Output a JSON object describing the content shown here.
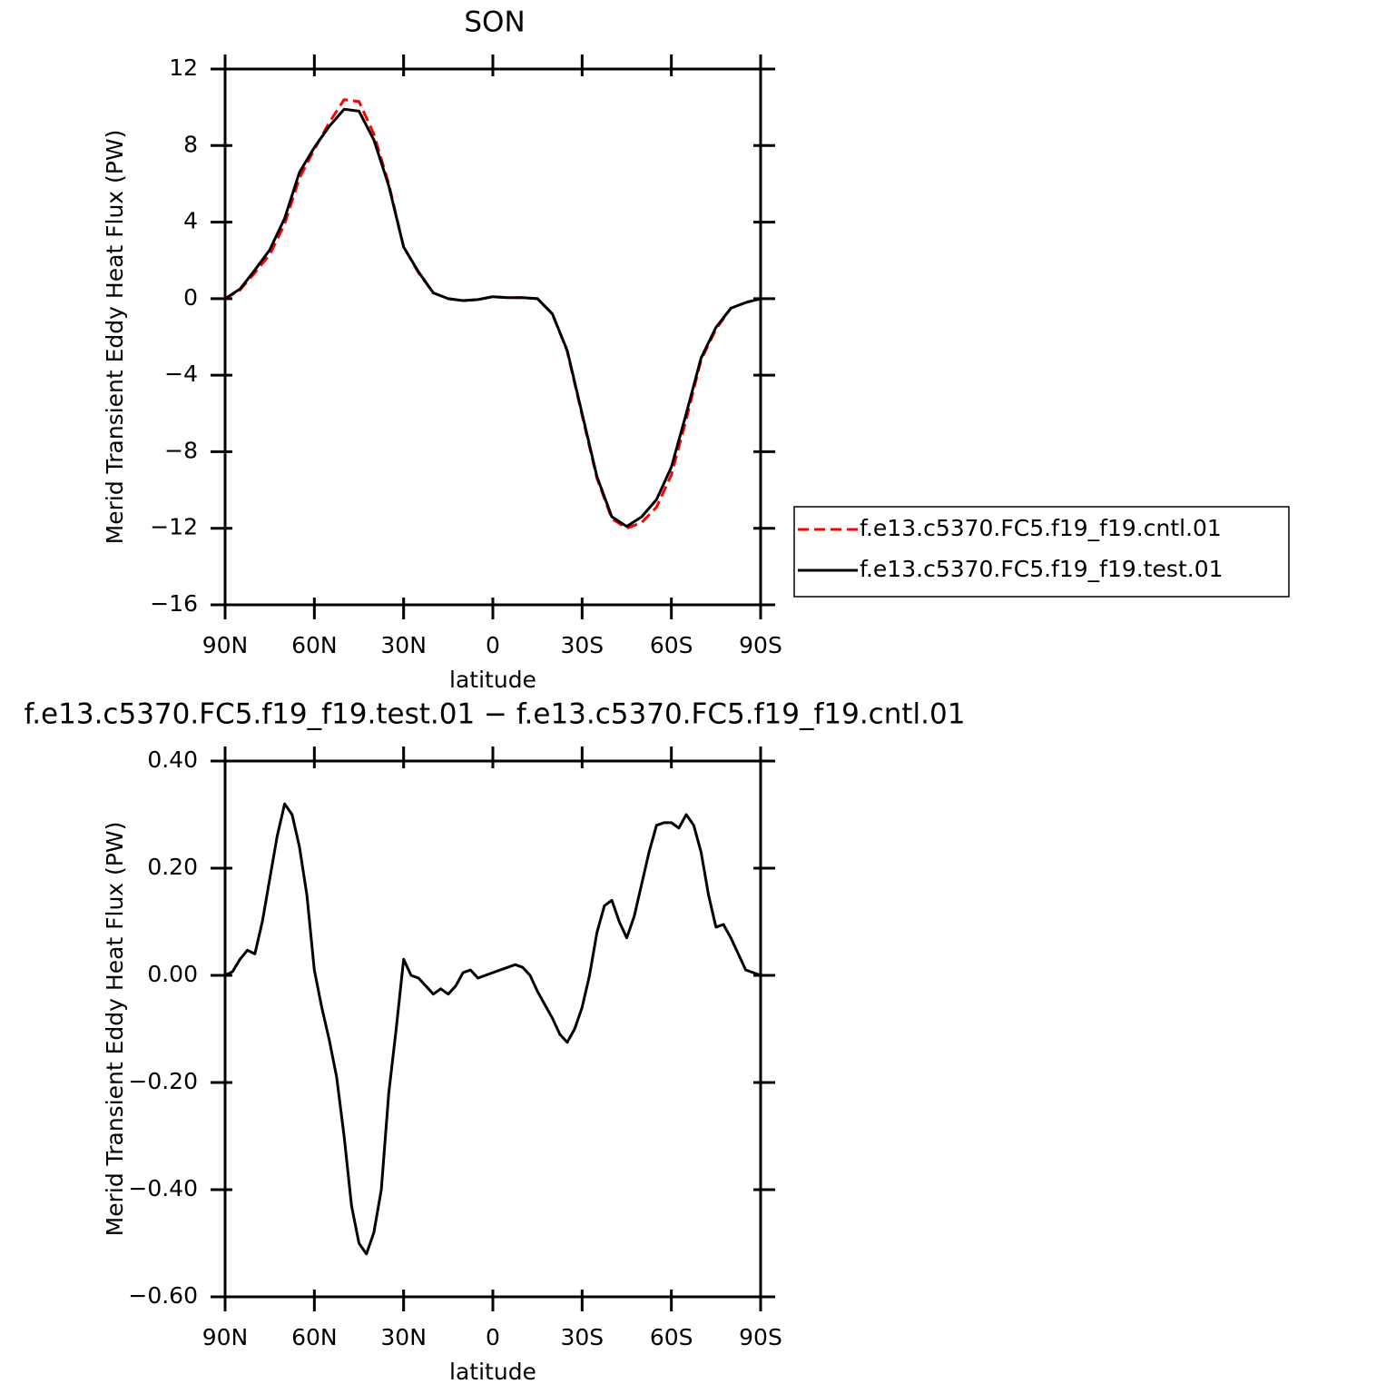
{
  "chart_data": [
    {
      "type": "line",
      "title": "SON",
      "xlabel": "latitude",
      "ylabel": "Merid Transient Eddy Heat Flux (PW)",
      "x": [
        90,
        85,
        80,
        75,
        70,
        65,
        60,
        55,
        50,
        45,
        40,
        35,
        30,
        25,
        20,
        15,
        10,
        5,
        0,
        -5,
        -10,
        -15,
        -20,
        -25,
        -30,
        -35,
        -40,
        -45,
        -50,
        -55,
        -60,
        -65,
        -70,
        -75,
        -80,
        -85,
        -90
      ],
      "series": [
        {
          "name": "f.e13.c5370.FC5.f19_f19.cntl.01",
          "color": "#ff0000",
          "linestyle": "dashed",
          "values": [
            0,
            0.45,
            1.35,
            2.3,
            3.9,
            6.3,
            7.8,
            9.2,
            10.4,
            10.3,
            8.6,
            6.0,
            2.7,
            1.35,
            0.3,
            0.0,
            -0.1,
            -0.05,
            0.1,
            0.05,
            0.05,
            0.0,
            -0.8,
            -2.75,
            -6.1,
            -9.4,
            -11.5,
            -12.0,
            -11.7,
            -10.9,
            -9.2,
            -6.3,
            -3.2,
            -1.6,
            -0.5,
            -0.2,
            0
          ]
        },
        {
          "name": "f.e13.c5370.FC5.f19_f19.test.01",
          "color": "#000000",
          "linestyle": "solid",
          "values": [
            0,
            0.5,
            1.5,
            2.55,
            4.2,
            6.6,
            7.9,
            9.0,
            9.9,
            9.8,
            8.3,
            5.9,
            2.7,
            1.4,
            0.3,
            0.0,
            -0.1,
            -0.05,
            0.1,
            0.05,
            0.05,
            0.0,
            -0.8,
            -2.7,
            -6.0,
            -9.3,
            -11.4,
            -11.9,
            -11.4,
            -10.5,
            -8.8,
            -6.0,
            -3.1,
            -1.5,
            -0.5,
            -0.2,
            0
          ]
        }
      ],
      "xlim": [
        90,
        -90
      ],
      "xticks": [
        {
          "value": 90,
          "label": "90N"
        },
        {
          "value": 60,
          "label": "60N"
        },
        {
          "value": 30,
          "label": "30N"
        },
        0,
        {
          "value": -30,
          "label": "30S"
        },
        {
          "value": -60,
          "label": "60S"
        },
        {
          "value": -90,
          "label": "90S"
        }
      ],
      "ylim": [
        -16,
        12
      ],
      "yticks": [
        {
          "value": -16,
          "label": "−16"
        },
        {
          "value": -12,
          "label": "−12"
        },
        {
          "value": -8,
          "label": "−8"
        },
        {
          "value": -4,
          "label": "−4"
        },
        0,
        4,
        8,
        12
      ],
      "legend": "right"
    },
    {
      "type": "line",
      "title": "f.e13.c5370.FC5.f19_f19.test.01 − f.e13.c5370.FC5.f19_f19.cntl.01",
      "xlabel": "latitude",
      "ylabel": "Merid Transient Eddy Heat Flux (PW)",
      "x": [
        90,
        87.5,
        85,
        82.5,
        80,
        77.5,
        75,
        72.5,
        70,
        67.5,
        65,
        62.5,
        60,
        57.5,
        55,
        52.5,
        50,
        47.5,
        45,
        42.5,
        40,
        37.5,
        35,
        32.5,
        30,
        27.5,
        25,
        22.5,
        20,
        17.5,
        15,
        12.5,
        10,
        7.5,
        5,
        2.5,
        0,
        -2.5,
        -5,
        -7.5,
        -10,
        -12.5,
        -15,
        -17.5,
        -20,
        -22.5,
        -25,
        -27.5,
        -30,
        -32.5,
        -35,
        -37.5,
        -40,
        -42.5,
        -45,
        -47.5,
        -50,
        -52.5,
        -55,
        -57.5,
        -60,
        -62.5,
        -65,
        -67.5,
        -70,
        -72.5,
        -75,
        -77.5,
        -80,
        -82.5,
        -85,
        -87.5,
        -90
      ],
      "values": [
        0.0,
        0.007,
        0.03,
        0.047,
        0.04,
        0.1,
        0.18,
        0.26,
        0.32,
        0.3,
        0.24,
        0.15,
        0.01,
        -0.06,
        -0.12,
        -0.19,
        -0.3,
        -0.43,
        -0.5,
        -0.52,
        -0.48,
        -0.4,
        -0.22,
        -0.1,
        0.03,
        0.0,
        -0.005,
        -0.02,
        -0.035,
        -0.025,
        -0.035,
        -0.02,
        0.005,
        0.01,
        -0.005,
        0.0,
        0.005,
        0.01,
        0.015,
        0.02,
        0.015,
        0.0,
        -0.03,
        -0.055,
        -0.08,
        -0.11,
        -0.125,
        -0.1,
        -0.06,
        0.0,
        0.08,
        0.13,
        0.14,
        0.1,
        0.07,
        0.11,
        0.17,
        0.23,
        0.28,
        0.285,
        0.285,
        0.275,
        0.3,
        0.28,
        0.23,
        0.15,
        0.09,
        0.095,
        0.07,
        0.04,
        0.01,
        0.005,
        0.0
      ],
      "color": "#000000",
      "xlim": [
        90,
        -90
      ],
      "xticks": [
        {
          "value": 90,
          "label": "90N"
        },
        {
          "value": 60,
          "label": "60N"
        },
        {
          "value": 30,
          "label": "30N"
        },
        0,
        {
          "value": -30,
          "label": "30S"
        },
        {
          "value": -60,
          "label": "60S"
        },
        {
          "value": -90,
          "label": "90S"
        }
      ],
      "ylim": [
        -0.6,
        0.4
      ],
      "yticks": [
        {
          "value": -0.6,
          "label": "−0.60"
        },
        {
          "value": -0.4,
          "label": "−0.40"
        },
        {
          "value": -0.2,
          "label": "−0.20"
        },
        {
          "value": 0,
          "label": "0.00"
        },
        {
          "value": 0.2,
          "label": "0.20"
        },
        {
          "value": 0.4,
          "label": "0.40"
        }
      ]
    }
  ]
}
